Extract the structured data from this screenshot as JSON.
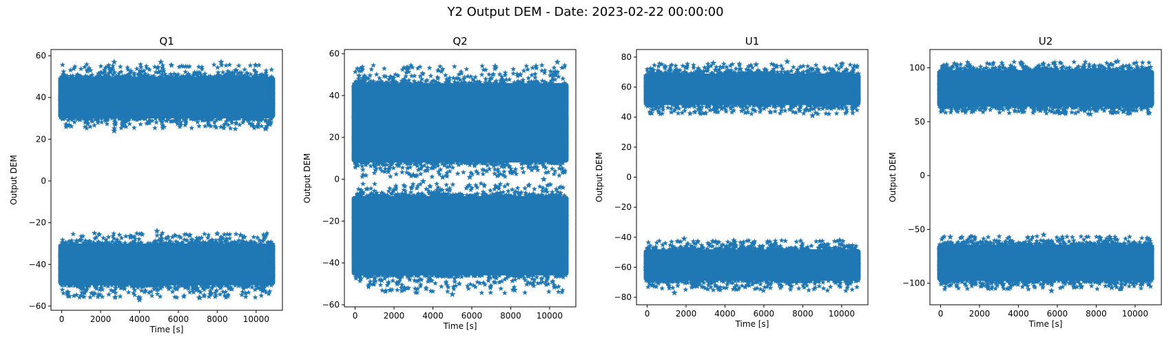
{
  "figure": {
    "title": "Y2 Output DEM - Date: 2023-02-22 00:00:00"
  },
  "colors": {
    "marker": "#1f77b4",
    "axes": "#000000",
    "background": "#ffffff"
  },
  "chart_data": [
    {
      "type": "scatter",
      "title": "Q1",
      "xlabel": "Time [s]",
      "ylabel": "Output DEM",
      "xlim": [
        -550,
        11350
      ],
      "ylim": [
        -62,
        63
      ],
      "xticks": [
        0,
        2000,
        4000,
        6000,
        8000,
        10000
      ],
      "yticks": [
        -60,
        -40,
        -20,
        0,
        20,
        40,
        60
      ],
      "x_range": [
        0,
        10800
      ],
      "marker": "star",
      "bands": [
        {
          "center": 40,
          "core_low": 30,
          "core_high": 50,
          "min": 24,
          "max": 57
        },
        {
          "center": -40,
          "core_low": -50,
          "core_high": -30,
          "min": -57,
          "max": -24
        }
      ],
      "outliers": [
        [
          2700,
          24
        ],
        [
          10500,
          25
        ],
        [
          4000,
          -57
        ],
        [
          2700,
          57
        ],
        [
          5100,
          57
        ],
        [
          8200,
          57
        ],
        [
          4900,
          -24
        ],
        [
          9200,
          -26
        ],
        [
          7100,
          -56
        ],
        [
          1000,
          -55
        ]
      ]
    },
    {
      "type": "scatter",
      "title": "Q2",
      "xlabel": "Time [s]",
      "ylabel": "Output DEM",
      "xlim": [
        -550,
        11350
      ],
      "ylim": [
        -61,
        62
      ],
      "xticks": [
        0,
        2000,
        4000,
        6000,
        8000,
        10000
      ],
      "yticks": [
        -60,
        -40,
        -20,
        0,
        20,
        40,
        60
      ],
      "x_range": [
        0,
        10800
      ],
      "marker": "star",
      "bands": [
        {
          "center": 27,
          "core_low": 8,
          "core_high": 46,
          "min": 0,
          "max": 56
        },
        {
          "center": -27,
          "core_low": -46,
          "core_high": -8,
          "min": -56,
          "max": -1
        }
      ],
      "outliers": [
        [
          4500,
          1
        ],
        [
          5900,
          1
        ],
        [
          3000,
          2
        ],
        [
          9700,
          0
        ],
        [
          5000,
          -55
        ],
        [
          1800,
          -53
        ],
        [
          10400,
          56
        ],
        [
          9300,
          54
        ],
        [
          7200,
          54
        ],
        [
          3500,
          -1
        ],
        [
          8200,
          -53
        ]
      ]
    },
    {
      "type": "scatter",
      "title": "U1",
      "xlabel": "Time [s]",
      "ylabel": "Output DEM",
      "xlim": [
        -550,
        11350
      ],
      "ylim": [
        -85,
        85
      ],
      "xticks": [
        0,
        2000,
        4000,
        6000,
        8000,
        10000
      ],
      "yticks": [
        -80,
        -60,
        -40,
        -20,
        0,
        20,
        40,
        60,
        80
      ],
      "x_range": [
        0,
        10800
      ],
      "marker": "star",
      "bands": [
        {
          "center": 58,
          "core_low": 48,
          "core_high": 69,
          "min": 41,
          "max": 77
        },
        {
          "center": -58,
          "core_low": -69,
          "core_high": -48,
          "min": -77,
          "max": -41
        }
      ],
      "outliers": [
        [
          1900,
          -41
        ],
        [
          7200,
          77
        ],
        [
          3400,
          76
        ],
        [
          8500,
          41
        ],
        [
          1400,
          -77
        ],
        [
          5600,
          75
        ],
        [
          9900,
          -42
        ]
      ]
    },
    {
      "type": "scatter",
      "title": "U2",
      "xlabel": "Time [s]",
      "ylabel": "Output DEM",
      "xlim": [
        -550,
        11350
      ],
      "ylim": [
        -120,
        117
      ],
      "xticks": [
        0,
        2000,
        4000,
        6000,
        8000,
        10000
      ],
      "yticks": [
        -100,
        -50,
        0,
        50,
        100
      ],
      "x_range": [
        0,
        10800
      ],
      "marker": "star",
      "bands": [
        {
          "center": 80,
          "core_low": 64,
          "core_high": 98,
          "min": 56,
          "max": 107
        },
        {
          "center": -80,
          "core_low": -98,
          "core_high": -64,
          "min": -107,
          "max": -55
        }
      ],
      "outliers": [
        [
          9100,
          106
        ],
        [
          5700,
          -107
        ],
        [
          5300,
          -55
        ],
        [
          7700,
          57
        ],
        [
          8800,
          -104
        ],
        [
          500,
          -57
        ]
      ]
    }
  ]
}
